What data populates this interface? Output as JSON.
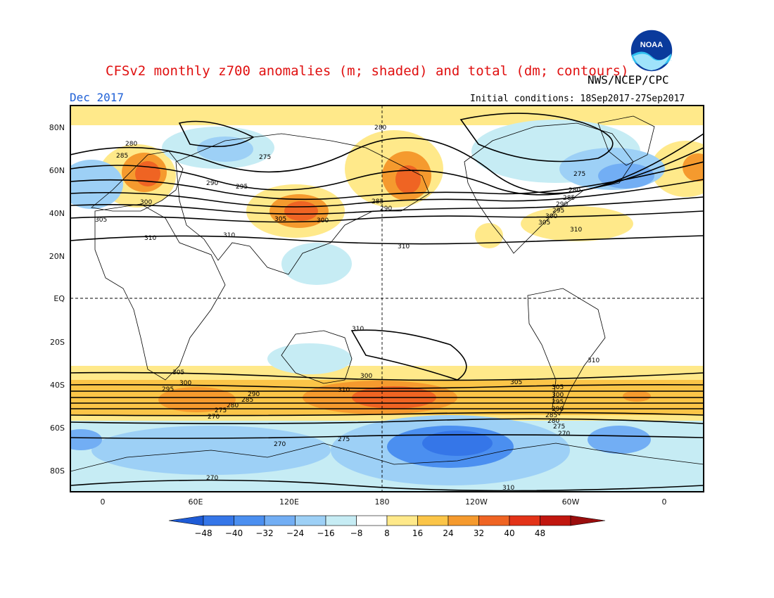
{
  "header": {
    "title": "CFSv2 monthly z700 anomalies (m; shaded) and total (dm; contours)",
    "org": "NWS/NCEP/CPC",
    "month": "Dec 2017",
    "initial_conditions": "Initial conditions: 18Sep2017-27Sep2017",
    "logo_text": "NOAA"
  },
  "map": {
    "lat_labels": [
      "80N",
      "60N",
      "40N",
      "20N",
      "EQ",
      "20S",
      "40S",
      "60S",
      "80S"
    ],
    "lon_labels": [
      "0",
      "60E",
      "120E",
      "180",
      "120W",
      "60W",
      "0"
    ],
    "contour_labels": [
      "280",
      "285",
      "290",
      "295",
      "300",
      "305",
      "310",
      "275",
      "310",
      "305",
      "300",
      "280",
      "285",
      "290",
      "275",
      "280",
      "285",
      "290",
      "295",
      "300",
      "305",
      "310",
      "310",
      "310",
      "305",
      "300",
      "295",
      "290",
      "285",
      "280",
      "275",
      "270",
      "270",
      "275",
      "270",
      "310",
      "305",
      "300",
      "310",
      "305",
      "300",
      "295",
      "290",
      "285",
      "280",
      "275",
      "270",
      "310"
    ]
  },
  "colorbar": {
    "ticks": [
      "-48",
      "-40",
      "-32",
      "-24",
      "-16",
      "-8",
      "8",
      "16",
      "24",
      "32",
      "40",
      "48"
    ],
    "colors": [
      "#1e5bd6",
      "#3576e8",
      "#4b8ff0",
      "#72aef4",
      "#9dd0f6",
      "#c6ecf4",
      "#ffffff",
      "#ffe98a",
      "#fbc548",
      "#f59a2e",
      "#ef6423",
      "#e33318",
      "#c1160f",
      "#9a0d0d"
    ]
  },
  "colors": {
    "title": "#e01010",
    "month": "#1d5fd6",
    "ocean": "#ffffff",
    "contour": "#000000"
  }
}
